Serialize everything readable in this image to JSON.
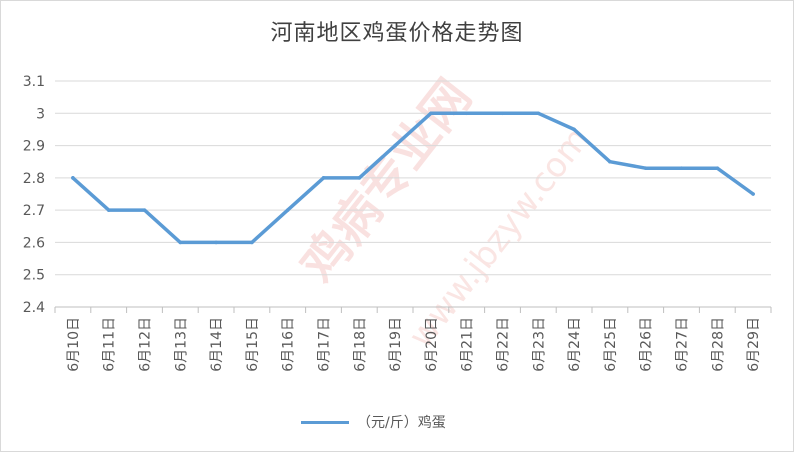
{
  "chart_data": {
    "type": "line",
    "title": "河南地区鸡蛋价格走势图",
    "categories": [
      "6月10日",
      "6月11日",
      "6月12日",
      "6月13日",
      "6月14日",
      "6月15日",
      "6月16日",
      "6月17日",
      "6月18日",
      "6月19日",
      "6月20日",
      "6月21日",
      "6月22日",
      "6月23日",
      "6月24日",
      "6月25日",
      "6月26日",
      "6月27日",
      "6月28日",
      "6月29日"
    ],
    "series": [
      {
        "name": "（元/斤）鸡蛋",
        "color": "#5b9bd5",
        "values": [
          2.8,
          2.7,
          2.7,
          2.6,
          2.6,
          2.6,
          2.7,
          2.8,
          2.8,
          2.9,
          3.0,
          3.0,
          3.0,
          3.0,
          2.95,
          2.85,
          2.83,
          2.83,
          2.83,
          2.75
        ]
      }
    ],
    "ylim": [
      2.4,
      3.1
    ],
    "yticks": [
      "3.1",
      "3",
      "2.9",
      "2.8",
      "2.7",
      "2.6",
      "2.5",
      "2.4"
    ],
    "grid": true,
    "legend_position": "bottom"
  },
  "watermark": {
    "main": "鸡病专业网",
    "url": "www.jbzyw.com"
  }
}
